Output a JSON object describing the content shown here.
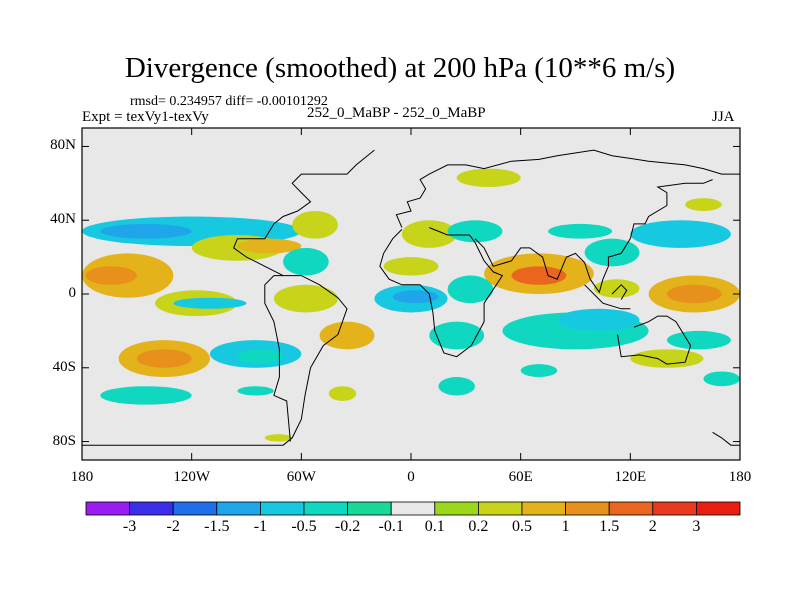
{
  "title": "Divergence (smoothed) at 200 hPa (10**6 m/s)",
  "stats_line": "rmsd= 0.234957 diff= -0.00101292",
  "expt_label": "Expt = texVy1-texVy",
  "run_label": "252_0_MaBP - 252_0_MaBP",
  "season_label": "JJA",
  "chart_data": {
    "type": "heatmap",
    "title": "Divergence (smoothed) at 200 hPa (10**6 m/s)",
    "subtitle": "252_0_MaBP - 252_0_MaBP",
    "field": "smoothed 200 hPa divergence difference",
    "projection": "cylindrical equidistant",
    "xlim": [
      -180,
      180
    ],
    "ylim": [
      -90,
      90
    ],
    "x_ticks": [
      {
        "value": -180,
        "label": "180"
      },
      {
        "value": -120,
        "label": "120W"
      },
      {
        "value": -60,
        "label": "60W"
      },
      {
        "value": 0,
        "label": "0"
      },
      {
        "value": 60,
        "label": "60E"
      },
      {
        "value": 120,
        "label": "120E"
      },
      {
        "value": 180,
        "label": "180"
      }
    ],
    "y_ticks": [
      {
        "value": 80,
        "label": "80N"
      },
      {
        "value": 40,
        "label": "40N"
      },
      {
        "value": 0,
        "label": "0"
      },
      {
        "value": -40,
        "label": "40S"
      },
      {
        "value": -80,
        "label": "80S"
      }
    ],
    "legend": {
      "position": "bottom",
      "levels": [
        "-3",
        "-2",
        "-1.5",
        "-1",
        "-0.5",
        "-0.2",
        "-0.1",
        "0.1",
        "0.2",
        "0.5",
        "1",
        "1.5",
        "2",
        "3"
      ],
      "colors": [
        "#9a1cf0",
        "#3b2ee8",
        "#1f6fea",
        "#1fa6ea",
        "#17c9e0",
        "#10d8c0",
        "#1ad89a",
        "#e8e8e8",
        "#9bd81c",
        "#c8d41a",
        "#e4b21a",
        "#e8901c",
        "#ea661f",
        "#e83a1f",
        "#e81e10"
      ]
    },
    "features": [
      {
        "band": "tropical positive",
        "lon": [
          -180,
          -130
        ],
        "lat": [
          0,
          20
        ],
        "value": 0.8
      },
      {
        "band": "southern positive",
        "lon": [
          -160,
          -110
        ],
        "lat": [
          -45,
          -25
        ],
        "value": 0.6
      },
      {
        "band": "southern negative",
        "lon": [
          -110,
          -60
        ],
        "lat": [
          -40,
          -25
        ],
        "value": -0.5
      },
      {
        "band": "northern negative",
        "lon": [
          -180,
          -60
        ],
        "lat": [
          25,
          45
        ],
        "value": -0.6
      },
      {
        "band": "africa negative",
        "lon": [
          -20,
          20
        ],
        "lat": [
          -10,
          5
        ],
        "value": -0.5
      },
      {
        "band": "asia positive",
        "lon": [
          40,
          100
        ],
        "lat": [
          0,
          20
        ],
        "value": 0.9
      },
      {
        "band": "indian ocean negative",
        "lon": [
          50,
          130
        ],
        "lat": [
          -30,
          -10
        ],
        "value": -0.4
      },
      {
        "band": "pacific positive",
        "lon": [
          130,
          180
        ],
        "lat": [
          -10,
          10
        ],
        "value": 0.8
      }
    ]
  }
}
